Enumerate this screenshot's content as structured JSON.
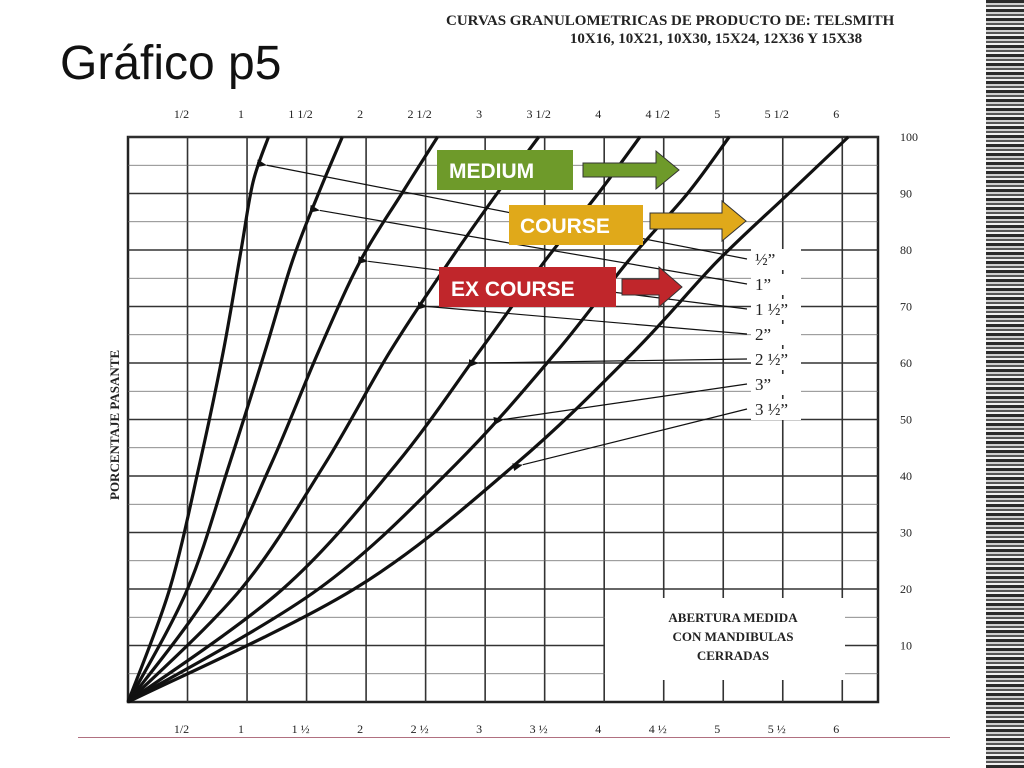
{
  "slide": {
    "title": "Gráfico p5"
  },
  "chart_data": {
    "type": "line",
    "title_line1": "CURVAS GRANULOMETRICAS DE PRODUCTO DE: TELSMITH",
    "title_line2": "10X16, 10X21, 10X30, 15X24, 12X36 Y 15X38",
    "xlabel": "",
    "ylabel": "PORCENTAJE PASANTE",
    "xlim": [
      0,
      6.3
    ],
    "ylim": [
      0,
      100
    ],
    "grid": true,
    "x_ticks_top": [
      "1/2",
      "1",
      "1 1/2",
      "2",
      "2 1/2",
      "3",
      "3 1/2",
      "4",
      "4 1/2",
      "5",
      "5 1/2",
      "6"
    ],
    "x_ticks_bottom": [
      "1/2",
      "1",
      "1 ½",
      "2",
      "2 ½",
      "3",
      "3 ½",
      "4",
      "4 ½",
      "5",
      "5 ½",
      "6"
    ],
    "x_tick_values": [
      0.5,
      1,
      1.5,
      2,
      2.5,
      3,
      3.5,
      4,
      4.5,
      5,
      5.5,
      6
    ],
    "y_ticks": [
      "100",
      "90",
      "80",
      "70",
      "60",
      "50",
      "40",
      "30",
      "20",
      "10"
    ],
    "y_tick_values": [
      100,
      90,
      80,
      70,
      60,
      50,
      40,
      30,
      20,
      10
    ],
    "series": [
      {
        "name": "½”",
        "x": [
          0,
          0.35,
          0.6,
          0.8,
          0.95,
          1.05,
          1.18
        ],
        "y": [
          0,
          20,
          42,
          62,
          80,
          92,
          100
        ]
      },
      {
        "name": "1”",
        "x": [
          0,
          0.5,
          0.85,
          1.15,
          1.38,
          1.6,
          1.8
        ],
        "y": [
          0,
          20,
          42,
          62,
          78,
          90,
          100
        ]
      },
      {
        "name": "1 ½”",
        "x": [
          0,
          0.7,
          1.2,
          1.6,
          1.95,
          2.3,
          2.6
        ],
        "y": [
          0,
          20,
          42,
          62,
          78,
          90,
          100
        ]
      },
      {
        "name": "2”",
        "x": [
          0,
          0.95,
          1.65,
          2.2,
          2.7,
          3.1,
          3.45
        ],
        "y": [
          0,
          20,
          42,
          62,
          78,
          90,
          100
        ]
      },
      {
        "name": "2 ½”",
        "x": [
          0,
          1.3,
          2.25,
          2.95,
          3.5,
          3.95,
          4.3
        ],
        "y": [
          0,
          20,
          42,
          62,
          78,
          90,
          100
        ]
      },
      {
        "name": "3”",
        "x": [
          0,
          1.6,
          2.75,
          3.6,
          4.2,
          4.7,
          5.05
        ],
        "y": [
          0,
          20,
          42,
          62,
          78,
          90,
          100
        ]
      },
      {
        "name": "3 ½”",
        "x": [
          0,
          1.9,
          3.25,
          4.25,
          4.95,
          5.55,
          6.05
        ],
        "y": [
          0,
          20,
          42,
          62,
          78,
          90,
          100
        ]
      }
    ],
    "annotation": [
      "ABERTURA MEDIDA",
      "CON MANDIBULAS",
      "CERRADAS"
    ],
    "categories_tags": [
      {
        "label": "MEDIUM",
        "color": "#6e9a2a"
      },
      {
        "label": "COURSE",
        "color": "#e0a91a"
      },
      {
        "label": "EX COURSE",
        "color": "#c0262b"
      }
    ]
  }
}
